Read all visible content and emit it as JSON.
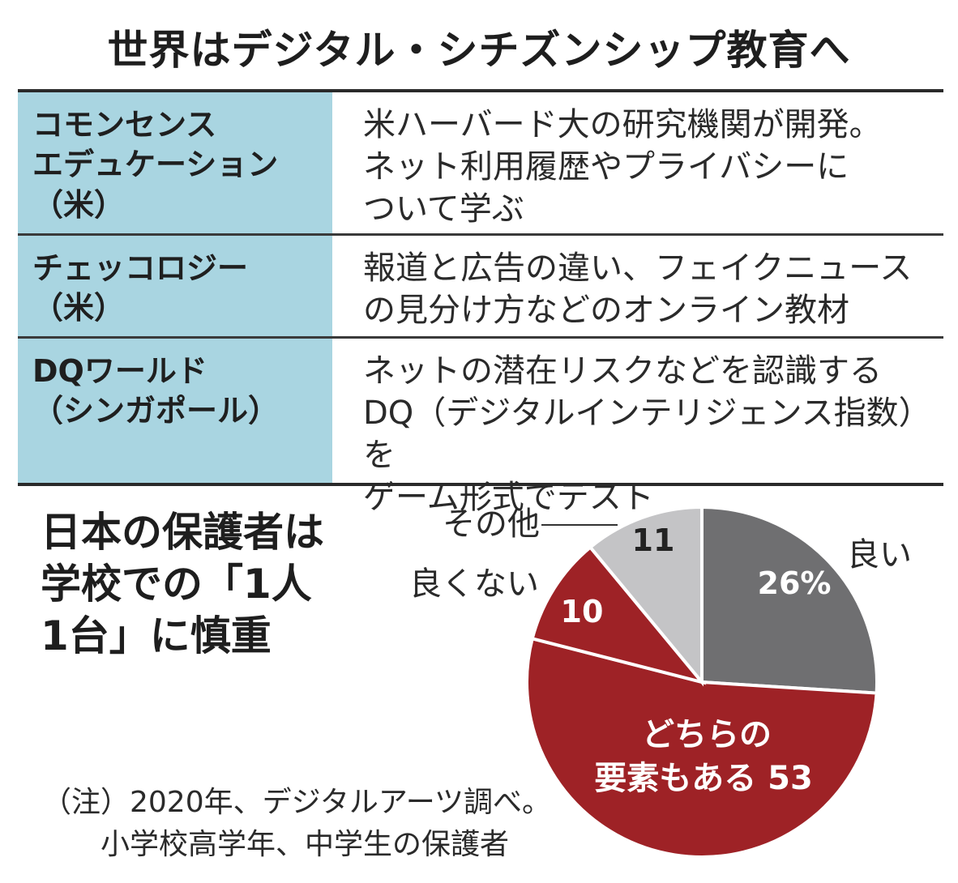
{
  "title": "世界はデジタル・シチズンシップ教育へ",
  "programs": [
    {
      "name": "コモンセンス\nエデュケーション\n（米）",
      "description": "米ハーバード大の研究機関が開発。\nネット利用履歴やプライバシーに\nついて学ぶ"
    },
    {
      "name": "チェッコロジー\n（米）",
      "description": "報道と広告の違い、フェイクニュース\nの見分け方などのオンライン教材"
    },
    {
      "name": "DQワールド\n（シンガポール）",
      "description": "ネットの潜在リスクなどを認識する\nDQ（デジタルインテリジェンス指数）を\nゲーム形式でテスト"
    }
  ],
  "chart_title": "日本の保護者は\n学校での「1人\n1台」に慎重",
  "note": "（注）2020年、デジタルアーツ調べ。\n　　小学校高学年、中学生の保護者",
  "colors": {
    "header_bg": "#a9d5e1",
    "good": "#6f6f71",
    "both": "#9e2226",
    "bad": "#9e2226",
    "other": "#c4c4c6"
  },
  "chart_data": {
    "type": "pie",
    "title": "日本の保護者は学校での「1人1台」に慎重",
    "slices": [
      {
        "label": "良い",
        "value": 26,
        "value_text": "26%"
      },
      {
        "label": "どちらの要素もある",
        "value": 53,
        "value_text": "53"
      },
      {
        "label": "良くない",
        "value": 10,
        "value_text": "10"
      },
      {
        "label": "その他",
        "value": 11,
        "value_text": "11"
      }
    ]
  }
}
